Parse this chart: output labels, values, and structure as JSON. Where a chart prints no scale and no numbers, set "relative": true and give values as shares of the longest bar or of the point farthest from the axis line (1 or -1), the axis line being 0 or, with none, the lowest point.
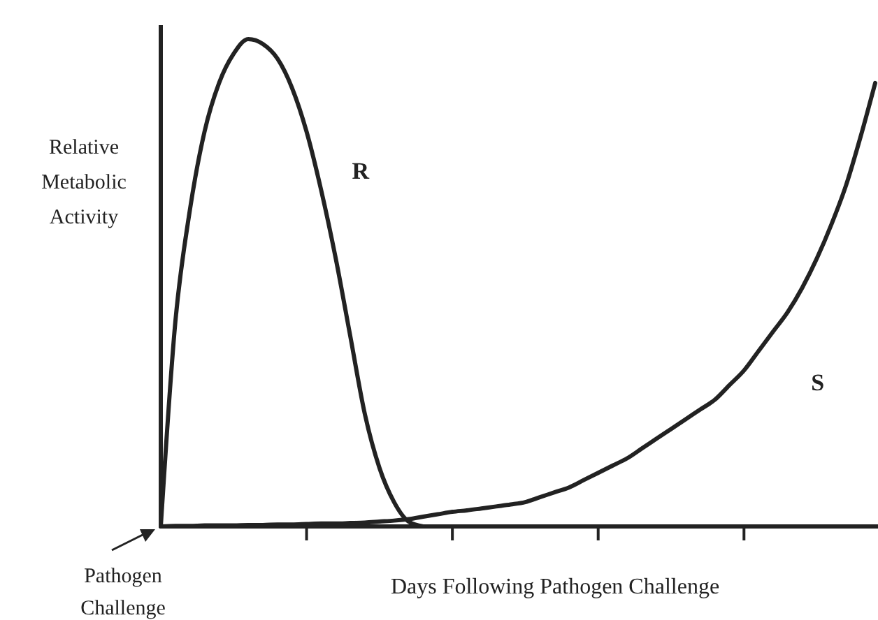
{
  "chart_data": {
    "type": "line",
    "relative": true,
    "ylabel": "Relative Metabolic Activity",
    "xlabel": "Days Following Pathogen Challenge",
    "annotations": [
      "Pathogen Challenge"
    ],
    "categories": [
      null,
      null,
      null,
      null,
      null,
      null,
      null,
      null,
      null,
      null,
      null,
      null,
      null,
      null,
      null,
      null,
      null,
      null,
      null,
      null,
      null,
      null,
      null,
      null,
      null,
      null,
      null,
      null,
      null,
      null,
      null,
      null,
      null,
      null,
      null,
      null,
      null,
      null,
      null,
      null,
      null,
      null,
      null,
      null,
      null,
      null,
      null,
      null,
      null,
      null
    ],
    "series": [
      {
        "name": "R",
        "color": "#222222",
        "values": [
          0,
          0.42,
          0.65,
          0.81,
          0.91,
          0.97,
          1,
          0.99,
          0.96,
          0.9,
          0.81,
          0.69,
          0.55,
          0.39,
          0.23,
          0.12,
          0.05,
          0.01,
          0,
          null,
          null,
          null,
          null,
          null,
          null,
          null,
          null,
          null,
          null,
          null,
          null,
          null,
          null,
          null,
          null,
          null,
          null,
          null,
          null,
          null,
          null,
          null,
          null,
          null,
          null,
          null,
          null,
          null,
          null,
          null
        ]
      },
      {
        "name": "S",
        "color": "#222222",
        "values": [
          0,
          0.001,
          0.001,
          0.002,
          0.002,
          0.002,
          0.003,
          0.003,
          0.004,
          0.004,
          0.005,
          0.006,
          0.006,
          0.007,
          0.008,
          0.01,
          0.012,
          0.015,
          0.02,
          0.025,
          0.03,
          0.033,
          0.037,
          0.041,
          0.045,
          0.05,
          0.06,
          0.07,
          0.08,
          0.095,
          0.11,
          0.125,
          0.14,
          0.16,
          0.18,
          0.2,
          0.22,
          0.24,
          0.26,
          0.29,
          0.32,
          0.36,
          0.4,
          0.44,
          0.49,
          0.55,
          0.62,
          0.7,
          0.8,
          0.91
        ]
      }
    ],
    "grid": false,
    "marker": "none",
    "line_style": "solid"
  }
}
